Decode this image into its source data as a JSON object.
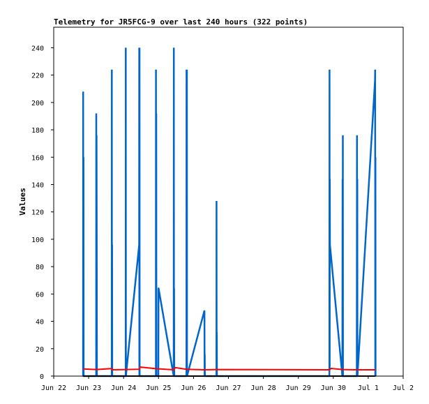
{
  "chart_data": {
    "type": "line",
    "title": "Telemetry for JR5FCG-9 over last 240 hours (322 points)",
    "xlabel": "",
    "ylabel": "Values",
    "xlim": [
      "2023-06-22",
      "2023-07-02"
    ],
    "x_tick_labels": [
      "Jun 22",
      "Jun 23",
      "Jun 24",
      "Jun 25",
      "Jun 26",
      "Jun 27",
      "Jun 28",
      "Jun 29",
      "Jun 30",
      "Jul 1",
      "Jul 2"
    ],
    "ylim": [
      0,
      255
    ],
    "y_ticks": [
      0,
      20,
      40,
      60,
      80,
      100,
      120,
      140,
      160,
      180,
      200,
      220,
      240
    ],
    "grid": false,
    "legend": "none",
    "series": [
      {
        "color": "#0066cc",
        "points": [
          [
            "2023-06-22 20:10",
            0
          ],
          [
            "2023-06-22 20:14",
            208
          ],
          [
            "2023-06-22 20:20",
            5
          ],
          [
            "2023-06-22 20:26",
            160
          ],
          [
            "2023-06-22 20:32",
            0
          ],
          [
            "2023-06-23 05:10",
            0
          ],
          [
            "2023-06-23 05:14",
            192
          ],
          [
            "2023-06-23 05:20",
            5
          ],
          [
            "2023-06-23 05:26",
            176
          ],
          [
            "2023-06-23 05:32",
            88
          ],
          [
            "2023-06-23 05:38",
            0
          ],
          [
            "2023-06-23 15:50",
            0
          ],
          [
            "2023-06-23 15:54",
            224
          ],
          [
            "2023-06-23 16:00",
            5
          ],
          [
            "2023-06-23 16:06",
            96
          ],
          [
            "2023-06-23 16:12",
            0
          ],
          [
            "2023-06-24 01:25",
            0
          ],
          [
            "2023-06-24 01:29",
            240
          ],
          [
            "2023-06-24 01:35",
            0
          ],
          [
            "2023-06-24 10:40",
            96
          ],
          [
            "2023-06-24 10:44",
            240
          ],
          [
            "2023-06-24 10:50",
            0
          ],
          [
            "2023-06-24 10:56",
            240
          ],
          [
            "2023-06-24 11:02",
            0
          ],
          [
            "2023-06-24 22:10",
            0
          ],
          [
            "2023-06-24 22:14",
            224
          ],
          [
            "2023-06-24 22:20",
            5
          ],
          [
            "2023-06-24 22:26",
            192
          ],
          [
            "2023-06-24 22:32",
            0
          ],
          [
            "2023-06-24 23:50",
            0
          ],
          [
            "2023-06-24 23:56",
            64
          ],
          [
            "2023-06-25 00:02",
            64
          ],
          [
            "2023-06-25 10:25",
            0
          ],
          [
            "2023-06-25 10:29",
            240
          ],
          [
            "2023-06-25 10:35",
            5
          ],
          [
            "2023-06-25 10:41",
            64
          ],
          [
            "2023-06-25 10:47",
            0
          ],
          [
            "2023-06-25 19:10",
            0
          ],
          [
            "2023-06-25 19:14",
            224
          ],
          [
            "2023-06-25 19:20",
            5
          ],
          [
            "2023-06-25 19:26",
            224
          ],
          [
            "2023-06-25 19:32",
            0
          ],
          [
            "2023-06-26 07:30",
            48
          ],
          [
            "2023-06-26 07:36",
            0
          ],
          [
            "2023-06-26 07:42",
            16
          ],
          [
            "2023-06-26 07:48",
            0
          ],
          [
            "2023-06-26 15:45",
            0
          ],
          [
            "2023-06-26 15:49",
            128
          ],
          [
            "2023-06-26 15:55",
            0
          ],
          [
            "2023-06-26 16:01",
            32
          ],
          [
            "2023-06-26 16:07",
            0
          ],
          [
            "2023-06-29 21:20",
            0
          ],
          [
            "2023-06-29 21:24",
            224
          ],
          [
            "2023-06-29 21:30",
            5
          ],
          [
            "2023-06-29 21:36",
            144
          ],
          [
            "2023-06-29 21:42",
            96
          ],
          [
            "2023-06-30 06:15",
            0
          ],
          [
            "2023-06-30 06:21",
            144
          ],
          [
            "2023-06-30 06:27",
            5
          ],
          [
            "2023-06-30 06:33",
            176
          ],
          [
            "2023-06-30 06:39",
            0
          ],
          [
            "2023-06-30 16:10",
            0
          ],
          [
            "2023-06-30 16:16",
            176
          ],
          [
            "2023-06-30 16:22",
            5
          ],
          [
            "2023-06-30 16:28",
            144
          ],
          [
            "2023-06-30 16:34",
            0
          ],
          [
            "2023-07-01 04:40",
            216
          ],
          [
            "2023-07-01 04:44",
            224
          ],
          [
            "2023-07-01 04:50",
            0
          ],
          [
            "2023-07-01 04:56",
            160
          ],
          [
            "2023-07-01 05:02",
            0
          ]
        ]
      },
      {
        "color": "#ff0000",
        "points": [
          [
            "2023-06-22 20:14",
            5.2
          ],
          [
            "2023-06-23 05:14",
            4.8
          ],
          [
            "2023-06-23 15:54",
            5.5
          ],
          [
            "2023-06-23 16:30",
            4.6
          ],
          [
            "2023-06-24 01:29",
            4.8
          ],
          [
            "2023-06-24 10:44",
            5.0
          ],
          [
            "2023-06-24 11:30",
            6.6
          ],
          [
            "2023-06-24 22:14",
            5.4
          ],
          [
            "2023-06-25 10:29",
            4.6
          ],
          [
            "2023-06-25 11:30",
            6.2
          ],
          [
            "2023-06-25 19:14",
            5.0
          ],
          [
            "2023-06-26 07:30",
            4.6
          ],
          [
            "2023-06-26 15:49",
            4.8
          ],
          [
            "2023-06-29 21:24",
            4.6
          ],
          [
            "2023-06-29 22:30",
            5.6
          ],
          [
            "2023-06-30 06:21",
            4.8
          ],
          [
            "2023-06-30 16:16",
            4.6
          ],
          [
            "2023-07-01 04:44",
            4.6
          ],
          [
            "2023-07-01 05:02",
            4.8
          ]
        ]
      },
      {
        "color": "#000000",
        "points": [
          [
            "2023-06-22 20:14",
            0
          ],
          [
            "2023-07-01 05:02",
            0
          ]
        ]
      }
    ]
  }
}
